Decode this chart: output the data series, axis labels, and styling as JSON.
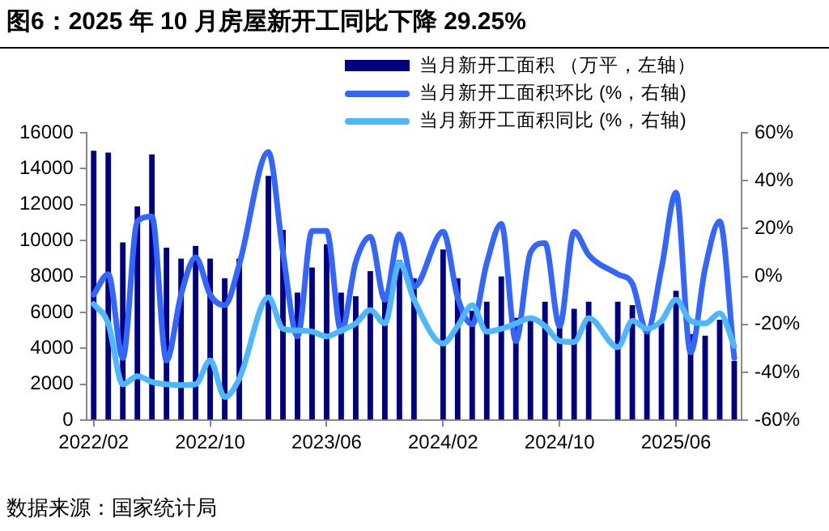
{
  "chart_data": {
    "type": "bar",
    "title": "图6：2025 年 10 月房屋新开工同比下降 29.25%",
    "categories": [
      "2022/02",
      null,
      null,
      null,
      null,
      null,
      null,
      null,
      "2022/10",
      null,
      null,
      null,
      null,
      null,
      null,
      null,
      "2023/06",
      null,
      null,
      null,
      null,
      null,
      null,
      null,
      "2024/02",
      null,
      null,
      null,
      null,
      null,
      null,
      null,
      "2024/10",
      null,
      null,
      null,
      null,
      null,
      null,
      null,
      "2025/06",
      null,
      null,
      null,
      null
    ],
    "series": [
      {
        "name": "当月新开工面积 （万平，左轴）",
        "color": "#000080",
        "values": [
          15000,
          14900,
          9900,
          11900,
          14800,
          9600,
          9000,
          9700,
          9000,
          7900,
          9000,
          null,
          13600,
          10600,
          7100,
          8500,
          9800,
          7100,
          6900,
          8300,
          7100,
          8900,
          7900,
          null,
          9500,
          7900,
          6100,
          6600,
          8000,
          5700,
          5800,
          6600,
          5200,
          6200,
          6600,
          null,
          6600,
          6400,
          5000,
          5400,
          7200,
          4800,
          4700,
          5600,
          3300
        ]
      },
      {
        "name": "当月新开工面积环比 (%，右轴)",
        "type": "line",
        "axis": "y2",
        "color": "#3366ff",
        "values": [
          -7.6,
          1,
          -34,
          23,
          25,
          -35,
          -7.6,
          8,
          -7.6,
          -12,
          5,
          null,
          52,
          10,
          -25,
          19,
          19,
          -23,
          6,
          16.6,
          -9.7,
          17.6,
          -4.3,
          null,
          18.7,
          -8.7,
          -20,
          5.6,
          22,
          -27,
          10,
          14,
          -20.7,
          18.7,
          9,
          null,
          1,
          -3,
          -23,
          3.4,
          35,
          -31.7,
          3.4,
          23,
          -34
        ]
      },
      {
        "name": "当月新开工面积同比 (%，右轴)",
        "type": "line",
        "axis": "y2",
        "color": "#4db8ff",
        "values": [
          -11.5,
          -19.6,
          -45,
          -41.6,
          -44,
          -45,
          -45.3,
          -45,
          -35,
          -50.3,
          -42.6,
          null,
          -8.7,
          -21.8,
          -22.5,
          -23,
          -25,
          -22.5,
          -19.6,
          -14,
          -19.6,
          5.6,
          -9.7,
          null,
          -28,
          -20.7,
          -12,
          -23,
          -21.8,
          -19.6,
          -17.4,
          -20.7,
          -26.9,
          -27.3,
          -17.4,
          null,
          -29.5,
          -18.5,
          -21.8,
          -18.5,
          -9.7,
          -18.5,
          -19.6,
          -15.3,
          -29
        ]
      }
    ],
    "ylim": [
      0,
      16000
    ],
    "yticks": [
      0,
      2000,
      4000,
      6000,
      8000,
      10000,
      12000,
      14000,
      16000
    ],
    "y2lim": [
      -60,
      60
    ],
    "y2ticks": [
      {
        "value": -60,
        "label": "-60%"
      },
      {
        "value": -40,
        "label": "-40%"
      },
      {
        "value": -20,
        "label": "-20%"
      },
      {
        "value": 0,
        "label": "0%"
      },
      {
        "value": 20,
        "label": "20%"
      },
      {
        "value": 40,
        "label": "40%"
      },
      {
        "value": 60,
        "label": "60%"
      }
    ],
    "grid": false,
    "legend": "top right",
    "marker": "none",
    "line_style": "solid",
    "annotations": [
      "数据来源：国家统计局"
    ]
  }
}
